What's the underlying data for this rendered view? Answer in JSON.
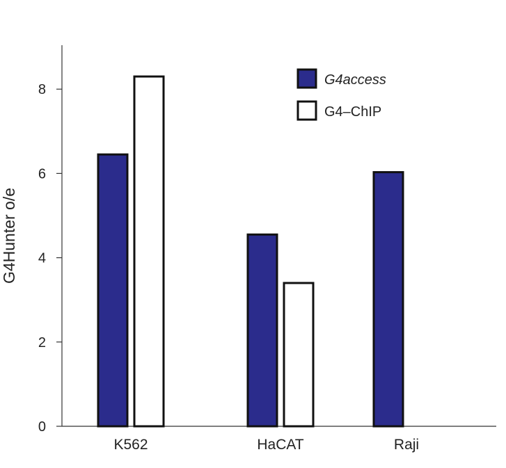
{
  "chart_data": {
    "type": "bar",
    "categories": [
      "K562",
      "HaCAT",
      "Raji"
    ],
    "series": [
      {
        "name": "G4access",
        "fill": "#2b2c8c",
        "stroke": "#111111",
        "italic": true,
        "values": [
          6.45,
          4.55,
          6.03
        ]
      },
      {
        "name": "G4–ChIP",
        "fill": "#ffffff",
        "stroke": "#111111",
        "italic": false,
        "values": [
          8.3,
          3.4,
          null
        ]
      }
    ],
    "ylabel": "G4Hunter o/e",
    "xlabel": "",
    "ylim": [
      0,
      9
    ],
    "yticks": [
      0,
      2,
      4,
      6,
      8
    ],
    "grid": false,
    "legend": "top-right"
  }
}
